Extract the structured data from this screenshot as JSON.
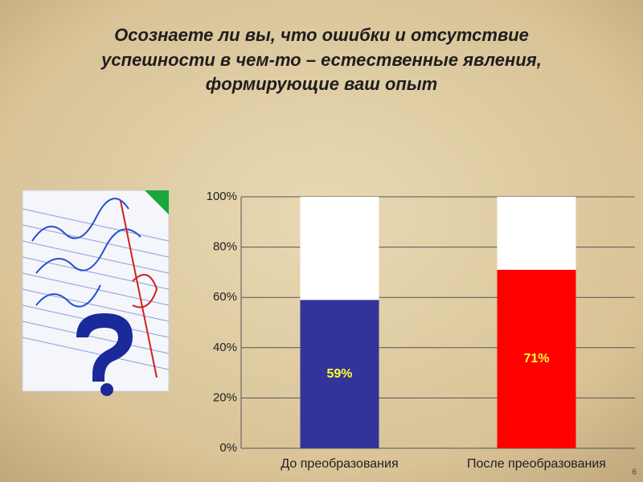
{
  "chart_data": {
    "type": "bar",
    "stacked": true,
    "title_lines": [
      "Осознаете ли вы, что ошибки и отсутствие",
      "успешности в чем-то – естественные явления,",
      "формирующие ваш опыт"
    ],
    "categories": [
      "До преобразования",
      "После преобразования"
    ],
    "series": [
      {
        "values": [
          59,
          71
        ],
        "colors": [
          "#333399",
          "#ff0000"
        ],
        "value_labels": [
          "59%",
          "71%"
        ],
        "label_color": "#ffff33"
      },
      {
        "values": [
          41,
          29
        ],
        "colors": [
          "#ffffff",
          "#ffffff"
        ]
      }
    ],
    "ylim": [
      0,
      100
    ],
    "yticks": [
      {
        "value": 0,
        "label": "0%"
      },
      {
        "value": 20,
        "label": "20%"
      },
      {
        "value": 40,
        "label": "40%"
      },
      {
        "value": 60,
        "label": "60%"
      },
      {
        "value": 80,
        "label": "80%"
      },
      {
        "value": 100,
        "label": "100%"
      }
    ],
    "grid": true
  },
  "page_number": "6"
}
